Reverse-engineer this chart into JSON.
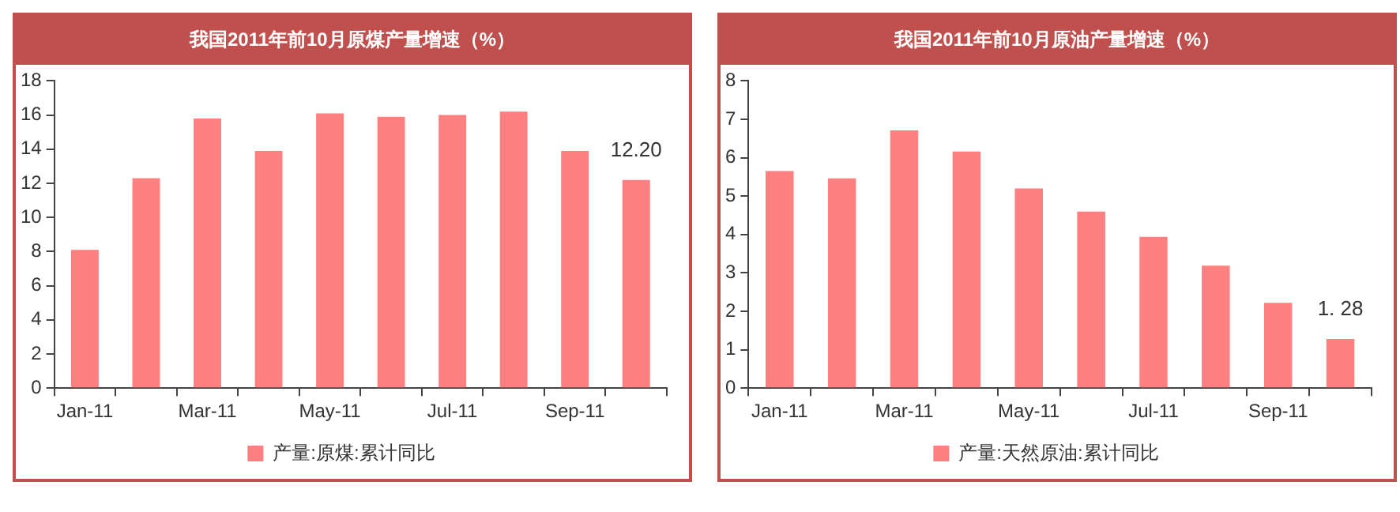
{
  "chart_data": [
    {
      "type": "bar",
      "title": "我国2011年前10月原煤产量增速（%）",
      "categories": [
        "Jan-11",
        null,
        "Mar-11",
        null,
        "May-11",
        null,
        "Jul-11",
        null,
        "Sep-11",
        null
      ],
      "series": [
        {
          "name": "产量:原煤:累计同比",
          "color": "#ff8080",
          "values": [
            8.1,
            12.3,
            15.8,
            13.9,
            16.1,
            15.9,
            16.0,
            16.2,
            13.9,
            12.2
          ],
          "value_labels": [
            null,
            null,
            null,
            null,
            null,
            null,
            null,
            null,
            null,
            "12.20"
          ]
        }
      ],
      "ylim": [
        0,
        18
      ],
      "yticks": [
        0,
        2,
        4,
        6,
        8,
        10,
        12,
        14,
        16,
        18
      ],
      "grid": false,
      "legend": "bottom"
    },
    {
      "type": "bar",
      "title": "我国2011年前10月原油产量增速（%）",
      "categories": [
        "Jan-11",
        null,
        "Mar-11",
        null,
        "May-11",
        null,
        "Jul-11",
        null,
        "Sep-11",
        null
      ],
      "series": [
        {
          "name": "产量:天然原油:累计同比",
          "color": "#ff8080",
          "values": [
            5.65,
            5.46,
            6.71,
            6.16,
            5.2,
            4.6,
            3.94,
            3.19,
            2.22,
            1.28
          ],
          "value_labels": [
            null,
            null,
            null,
            null,
            null,
            null,
            null,
            null,
            null,
            "1. 28"
          ]
        }
      ],
      "ylim": [
        0,
        8
      ],
      "yticks": [
        0,
        1,
        2,
        3,
        4,
        5,
        6,
        7,
        8
      ],
      "grid": false,
      "legend": "bottom"
    }
  ]
}
